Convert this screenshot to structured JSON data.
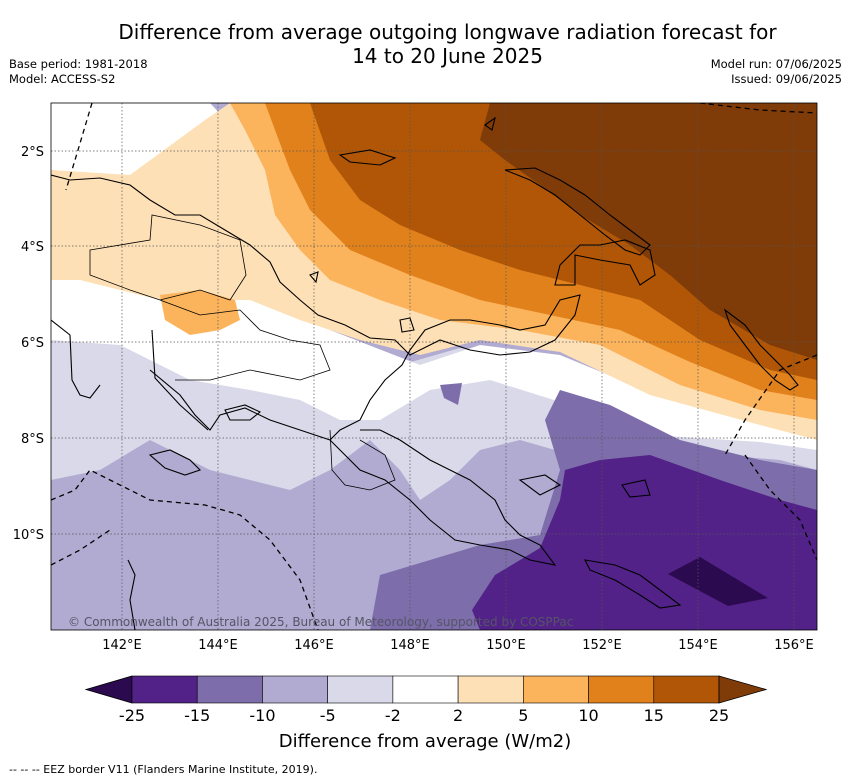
{
  "title_line1": "Difference from average outgoing longwave radiation forecast for",
  "title_line2": "14 to 20 June 2025",
  "meta_left": {
    "base_period": "Base period: 1981-2018",
    "model": "Model: ACCESS-S2"
  },
  "meta_right": {
    "model_run": "Model run: 07/06/2025",
    "issued": "Issued: 09/06/2025"
  },
  "latitude_labels": [
    "2°S",
    "4°S",
    "6°S",
    "8°S",
    "10°S"
  ],
  "longitude_labels": [
    "142°E",
    "144°E",
    "146°E",
    "148°E",
    "150°E",
    "152°E",
    "154°E",
    "156°E"
  ],
  "copyright": "© Commonwealth of Australia 2025, Bureau of Meteorology, supported by COSPPac",
  "colorbar": {
    "ticks": [
      "-25",
      "-15",
      "-10",
      "-5",
      "-2",
      "2",
      "5",
      "10",
      "15",
      "25"
    ],
    "colors": [
      "#2c0a4f",
      "#522288",
      "#7d6daa",
      "#b1abd1",
      "#d9d9ea",
      "#ffffff",
      "#fee0b6",
      "#fbb45c",
      "#e1811b",
      "#b05606",
      "#7f3b08"
    ],
    "label": "Difference from average (W/m2)"
  },
  "footnote": "-- -- -- EEZ border V11 (Flanders Marine Institute, 2019)."
}
